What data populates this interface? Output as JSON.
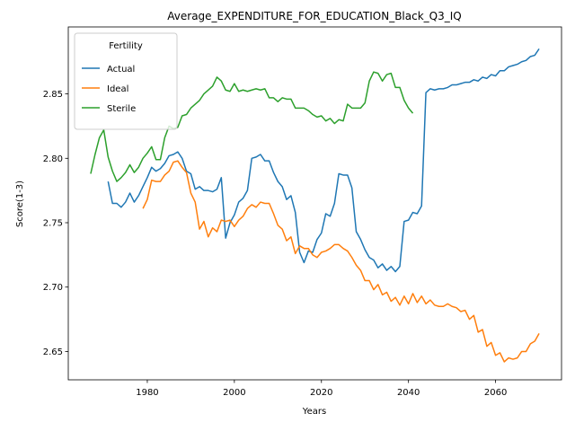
{
  "chart_data": {
    "type": "line",
    "title": "Average_EXPENDITURE_FOR_EDUCATION_Black_Q3_IQ",
    "xlabel": "Years",
    "ylabel": "Score(1-3)",
    "legend_title": "Fertility",
    "legend_loc": "upper left",
    "xlim": [
      1961.85,
      2075.15
    ],
    "ylim": [
      2.628,
      2.902
    ],
    "xticks": [
      1980,
      2000,
      2020,
      2040,
      2060
    ],
    "yticks": [
      2.65,
      {
        "value": 2.7,
        "label": "2.70"
      },
      2.75,
      {
        "value": 2.8,
        "label": "2.80"
      },
      2.85
    ],
    "x": [
      1967,
      1968,
      1969,
      1970,
      1971,
      1972,
      1973,
      1974,
      1975,
      1976,
      1977,
      1978,
      1979,
      1980,
      1981,
      1982,
      1983,
      1984,
      1985,
      1986,
      1987,
      1988,
      1989,
      1990,
      1991,
      1992,
      1993,
      1994,
      1995,
      1996,
      1997,
      1998,
      1999,
      2000,
      2001,
      2002,
      2003,
      2004,
      2005,
      2006,
      2007,
      2008,
      2009,
      2010,
      2011,
      2012,
      2013,
      2014,
      2015,
      2016,
      2017,
      2018,
      2019,
      2020,
      2021,
      2022,
      2023,
      2024,
      2025,
      2026,
      2027,
      2028,
      2029,
      2030,
      2031,
      2032,
      2033,
      2034,
      2035,
      2036,
      2037,
      2038,
      2039,
      2040,
      2041,
      2042,
      2043,
      2044,
      2045,
      2046,
      2047,
      2048,
      2049,
      2050,
      2051,
      2052,
      2053,
      2054,
      2055,
      2056,
      2057,
      2058,
      2059,
      2060,
      2061,
      2062,
      2063,
      2064,
      2065,
      2066,
      2067,
      2068,
      2069,
      2070
    ],
    "series": [
      {
        "name": "Actual",
        "color": "#1f77b4",
        "values": [
          null,
          null,
          null,
          null,
          2.782,
          2.765,
          2.765,
          2.762,
          2.766,
          2.773,
          2.766,
          2.771,
          2.778,
          2.785,
          2.793,
          2.79,
          2.792,
          2.796,
          2.802,
          2.803,
          2.805,
          2.8,
          2.79,
          2.788,
          2.776,
          2.778,
          2.775,
          2.775,
          2.774,
          2.776,
          2.785,
          2.738,
          2.75,
          2.756,
          2.766,
          2.769,
          2.775,
          2.8,
          2.801,
          2.803,
          2.798,
          2.798,
          2.789,
          2.782,
          2.778,
          2.768,
          2.771,
          2.758,
          2.727,
          2.719,
          2.728,
          2.727,
          2.737,
          2.742,
          2.757,
          2.755,
          2.765,
          2.788,
          2.787,
          2.787,
          2.777,
          2.743,
          2.737,
          2.729,
          2.723,
          2.721,
          2.715,
          2.718,
          2.713,
          2.716,
          2.712,
          2.716,
          2.751,
          2.752,
          2.758,
          2.757,
          2.763,
          2.851,
          2.854,
          2.853,
          2.854,
          2.854,
          2.855,
          2.857,
          2.857,
          2.858,
          2.859,
          2.859,
          2.861,
          2.86,
          2.863,
          2.862,
          2.865,
          2.864,
          2.868,
          2.868,
          2.871,
          2.872,
          2.873,
          2.875,
          2.876,
          2.879,
          2.88,
          2.885
        ]
      },
      {
        "name": "Ideal",
        "color": "#ff7f0e",
        "values": [
          null,
          null,
          null,
          null,
          null,
          null,
          null,
          null,
          null,
          null,
          null,
          null,
          2.761,
          2.768,
          2.783,
          2.782,
          2.782,
          2.787,
          2.79,
          2.797,
          2.798,
          2.793,
          2.789,
          2.773,
          2.766,
          2.745,
          2.751,
          2.739,
          2.746,
          2.743,
          2.752,
          2.751,
          2.752,
          2.747,
          2.752,
          2.755,
          2.761,
          2.764,
          2.762,
          2.766,
          2.765,
          2.765,
          2.757,
          2.748,
          2.745,
          2.736,
          2.739,
          2.726,
          2.732,
          2.73,
          2.73,
          2.725,
          2.723,
          2.727,
          2.728,
          2.73,
          2.733,
          2.733,
          2.73,
          2.728,
          2.723,
          2.717,
          2.713,
          2.705,
          2.705,
          2.698,
          2.702,
          2.694,
          2.696,
          2.689,
          2.692,
          2.686,
          2.693,
          2.687,
          2.695,
          2.688,
          2.693,
          2.687,
          2.69,
          2.686,
          2.685,
          2.685,
          2.687,
          2.685,
          2.684,
          2.681,
          2.682,
          2.675,
          2.678,
          2.665,
          2.667,
          2.654,
          2.657,
          2.647,
          2.649,
          2.642,
          2.645,
          2.644,
          2.645,
          2.65,
          2.65,
          2.656,
          2.658,
          2.664
        ]
      },
      {
        "name": "Sterile",
        "color": "#2ca02c",
        "values": [
          2.788,
          2.803,
          2.816,
          2.822,
          2.801,
          2.79,
          2.782,
          2.785,
          2.789,
          2.795,
          2.789,
          2.793,
          2.8,
          2.804,
          2.809,
          2.799,
          2.799,
          2.816,
          2.825,
          2.823,
          2.824,
          2.833,
          2.834,
          2.839,
          2.842,
          2.845,
          2.85,
          2.853,
          2.856,
          2.863,
          2.86,
          2.853,
          2.852,
          2.858,
          2.852,
          2.853,
          2.852,
          2.853,
          2.854,
          2.853,
          2.854,
          2.847,
          2.847,
          2.844,
          2.847,
          2.846,
          2.846,
          2.839,
          2.839,
          2.839,
          2.837,
          2.834,
          2.832,
          2.833,
          2.829,
          2.831,
          2.827,
          2.83,
          2.829,
          2.842,
          2.839,
          2.839,
          2.839,
          2.843,
          2.86,
          2.867,
          2.866,
          2.86,
          2.865,
          2.866,
          2.855,
          2.855,
          2.845,
          2.839,
          2.835,
          null,
          null,
          null,
          null,
          null,
          null,
          null,
          null,
          null,
          null,
          null,
          null,
          null,
          null,
          null,
          null,
          null,
          null,
          null,
          null,
          null,
          null,
          null,
          null,
          null,
          null,
          null,
          null,
          null
        ]
      }
    ]
  }
}
